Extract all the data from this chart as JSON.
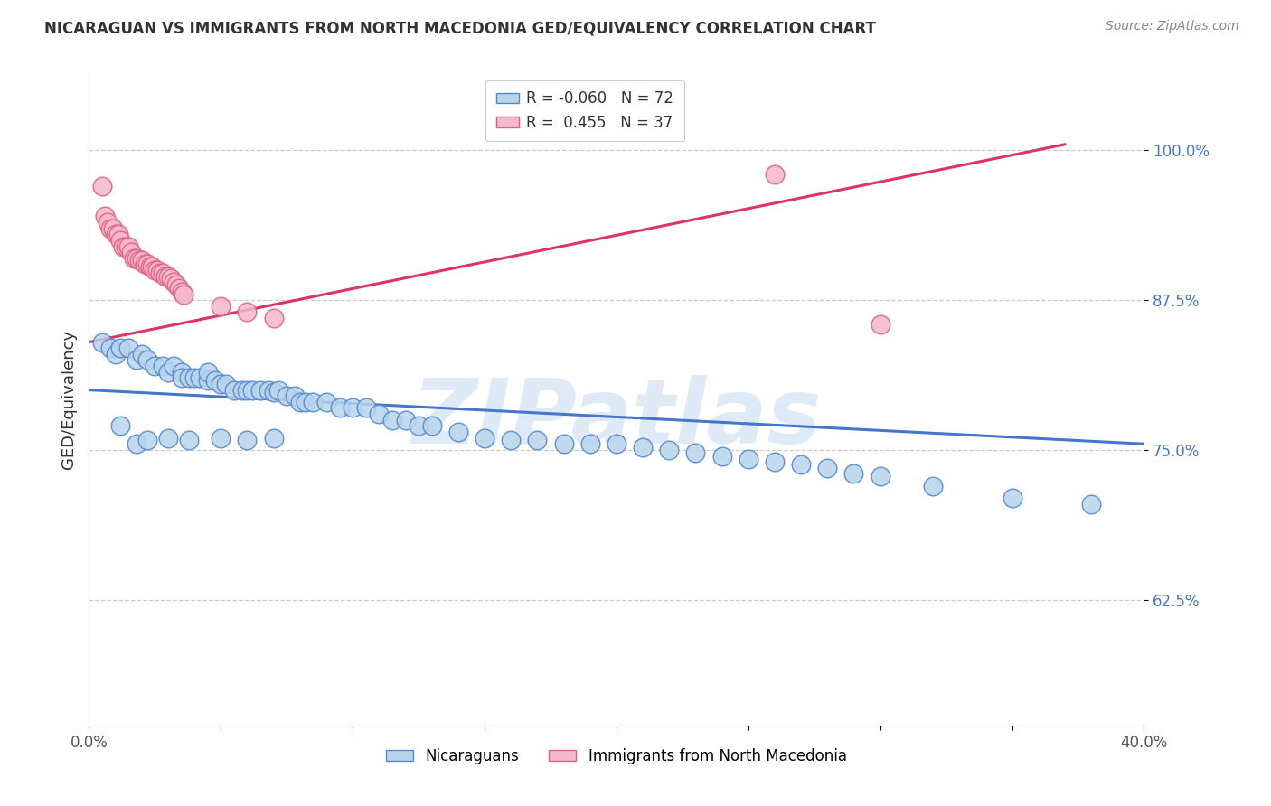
{
  "title": "NICARAGUAN VS IMMIGRANTS FROM NORTH MACEDONIA GED/EQUIVALENCY CORRELATION CHART",
  "source": "Source: ZipAtlas.com",
  "ylabel": "GED/Equivalency",
  "yticks": [
    0.625,
    0.75,
    0.875,
    1.0
  ],
  "ytick_labels": [
    "62.5%",
    "75.0%",
    "87.5%",
    "100.0%"
  ],
  "xmin": 0.0,
  "xmax": 0.4,
  "ymin": 0.52,
  "ymax": 1.065,
  "legend_r1": "R = -0.060",
  "legend_n1": "N = 72",
  "legend_r2": "R =  0.455",
  "legend_n2": "N = 37",
  "blue_color": "#b8d4ec",
  "pink_color": "#f5b8cc",
  "blue_edge_color": "#5588cc",
  "pink_edge_color": "#e06080",
  "blue_line_color": "#4477cc",
  "pink_line_color": "#dd3366",
  "ytick_color": "#4477cc",
  "watermark_color": "#c8dff0",
  "watermark": "ZIPatlas",
  "blue_trend_x": [
    0.0,
    0.4
  ],
  "blue_trend_y": [
    0.8,
    0.755
  ],
  "pink_trend_x": [
    0.0,
    0.37
  ],
  "pink_trend_y": [
    0.84,
    1.005
  ],
  "blue_scatter_x": [
    0.005,
    0.008,
    0.01,
    0.012,
    0.015,
    0.018,
    0.02,
    0.022,
    0.025,
    0.028,
    0.03,
    0.032,
    0.035,
    0.035,
    0.038,
    0.04,
    0.042,
    0.045,
    0.045,
    0.048,
    0.05,
    0.052,
    0.055,
    0.058,
    0.06,
    0.062,
    0.065,
    0.068,
    0.07,
    0.072,
    0.075,
    0.078,
    0.08,
    0.082,
    0.085,
    0.09,
    0.095,
    0.1,
    0.105,
    0.11,
    0.115,
    0.12,
    0.125,
    0.13,
    0.14,
    0.15,
    0.16,
    0.17,
    0.18,
    0.19,
    0.2,
    0.21,
    0.22,
    0.23,
    0.24,
    0.25,
    0.26,
    0.27,
    0.28,
    0.29,
    0.3,
    0.32,
    0.35,
    0.38,
    0.012,
    0.018,
    0.022,
    0.03,
    0.038,
    0.05,
    0.06,
    0.07
  ],
  "blue_scatter_y": [
    0.84,
    0.835,
    0.83,
    0.835,
    0.835,
    0.825,
    0.83,
    0.825,
    0.82,
    0.82,
    0.815,
    0.82,
    0.815,
    0.81,
    0.81,
    0.81,
    0.81,
    0.808,
    0.815,
    0.808,
    0.805,
    0.805,
    0.8,
    0.8,
    0.8,
    0.8,
    0.8,
    0.8,
    0.798,
    0.8,
    0.795,
    0.795,
    0.79,
    0.79,
    0.79,
    0.79,
    0.785,
    0.785,
    0.785,
    0.78,
    0.775,
    0.775,
    0.77,
    0.77,
    0.765,
    0.76,
    0.758,
    0.758,
    0.755,
    0.755,
    0.755,
    0.752,
    0.75,
    0.748,
    0.745,
    0.742,
    0.74,
    0.738,
    0.735,
    0.73,
    0.728,
    0.72,
    0.71,
    0.705,
    0.77,
    0.755,
    0.758,
    0.76,
    0.758,
    0.76,
    0.758,
    0.76
  ],
  "pink_scatter_x": [
    0.005,
    0.006,
    0.007,
    0.008,
    0.009,
    0.01,
    0.011,
    0.012,
    0.013,
    0.014,
    0.015,
    0.016,
    0.017,
    0.018,
    0.019,
    0.02,
    0.021,
    0.022,
    0.023,
    0.024,
    0.025,
    0.026,
    0.027,
    0.028,
    0.029,
    0.03,
    0.031,
    0.032,
    0.033,
    0.034,
    0.035,
    0.036,
    0.05,
    0.06,
    0.07,
    0.26,
    0.3
  ],
  "pink_scatter_y": [
    0.97,
    0.945,
    0.94,
    0.935,
    0.935,
    0.93,
    0.93,
    0.925,
    0.92,
    0.92,
    0.92,
    0.915,
    0.91,
    0.91,
    0.908,
    0.908,
    0.905,
    0.905,
    0.903,
    0.903,
    0.9,
    0.9,
    0.898,
    0.898,
    0.895,
    0.895,
    0.893,
    0.89,
    0.888,
    0.885,
    0.882,
    0.88,
    0.87,
    0.865,
    0.86,
    0.98,
    0.855
  ]
}
